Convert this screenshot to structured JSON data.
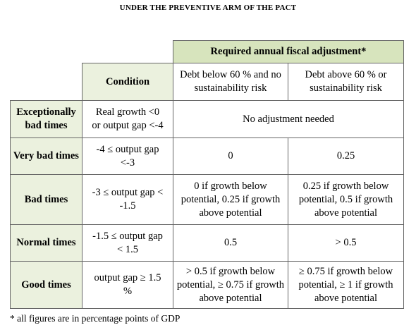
{
  "title": "UNDER THE PREVENTIVE ARM OF THE PACT",
  "table": {
    "group_header": "Required annual fiscal adjustment*",
    "columns": [
      "Condition",
      "Debt below 60 % and no sustainability risk",
      "Debt above 60 % or sustainability risk"
    ],
    "rows": [
      [
        "Exceptionally bad times",
        "Real growth <0 or output gap <-4",
        "No adjustment needed"
      ],
      [
        "Very bad times",
        "-4 ≤ output gap <-3",
        "0",
        "0.25"
      ],
      [
        "Bad times",
        "-3 ≤ output gap < -1.5",
        "0 if growth below potential, 0.25 if growth above potential",
        "0.25 if growth below potential, 0.5 if growth above potential"
      ],
      [
        "Normal times",
        "-1.5 ≤ output gap < 1.5",
        "0.5",
        "> 0.5"
      ],
      [
        "Good times",
        "output gap ≥ 1.5 %",
        "> 0.5 if growth below potential, ≥ 0.75 if growth above potential",
        "≥ 0.75 if growth below potential, ≥ 1 if growth above potential"
      ]
    ]
  },
  "footnote": "* all figures are in percentage points of GDP"
}
